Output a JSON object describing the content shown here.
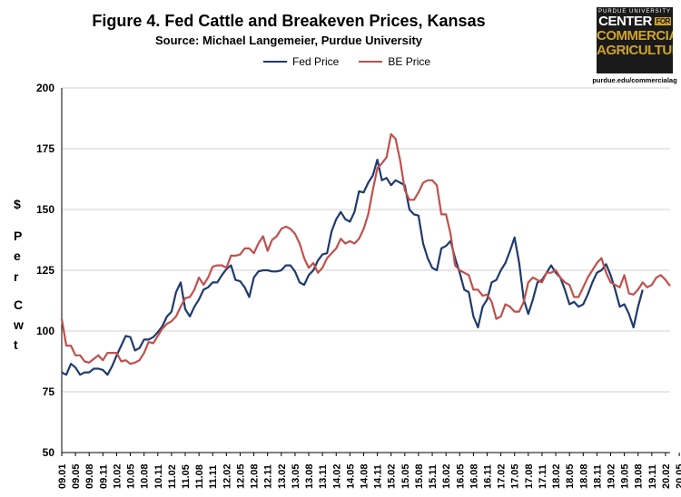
{
  "title": "Figure 4. Fed Cattle and Breakeven Prices, Kansas",
  "subtitle": "Source:  Michael Langemeier, Purdue University",
  "logo": {
    "line1": "PURDUE UNIVERSITY",
    "line2": "CENTER",
    "line2b": "FOR",
    "line3": "COMMERCIAL",
    "line4": "AGRICULTURE",
    "url": "purdue.edu/commercialag"
  },
  "colors": {
    "fed": "#1f3a6e",
    "be": "#c0504d",
    "grid": "#d0d0d0"
  },
  "chart_data": {
    "type": "line",
    "title": "Figure 4. Fed Cattle and Breakeven Prices, Kansas",
    "ylabel": "$ Per Cwt",
    "ylim": [
      50,
      200
    ],
    "yticks": [
      50,
      75,
      100,
      125,
      150,
      175,
      200
    ],
    "grid": "horizontal",
    "legend": "top-center",
    "x_start": "09.01",
    "x_end": "20.06",
    "x_ticks": [
      "09.01",
      "09.05",
      "09.08",
      "09.11",
      "10.02",
      "10.05",
      "10.08",
      "10.11",
      "11.02",
      "11.05",
      "11.08",
      "11.11",
      "12.02",
      "12.05",
      "12.08",
      "12.11",
      "13.02",
      "13.05",
      "13.08",
      "13.11",
      "14.02",
      "14.05",
      "14.08",
      "14.11",
      "15.02",
      "15.05",
      "15.08",
      "15.11",
      "16.02",
      "16.05",
      "16.08",
      "16.11",
      "17.02",
      "17.05",
      "17.08",
      "17.11",
      "18.02",
      "18.05",
      "18.08",
      "18.11",
      "19.02",
      "19.05",
      "19.08",
      "19.11",
      "20.02",
      "20.05"
    ],
    "series": [
      {
        "name": "Fed Price",
        "values": [
          83,
          82,
          86.5,
          85,
          82,
          83,
          83,
          84.5,
          84.5,
          84,
          82,
          85.5,
          90,
          94,
          98,
          97.5,
          92,
          93,
          96.5,
          96.5,
          97.5,
          99.5,
          102,
          106,
          108,
          116,
          120,
          109,
          106,
          110,
          113,
          117,
          118,
          120,
          120,
          123,
          125.5,
          127,
          121,
          120.5,
          118,
          114,
          122,
          124.5,
          125,
          125,
          124.5,
          124.5,
          125,
          127,
          127,
          124.5,
          120,
          119,
          123,
          125,
          129,
          131.5,
          132,
          141,
          146,
          149,
          146,
          145,
          149,
          157.5,
          157,
          161,
          164,
          170.5,
          162,
          163,
          160,
          162,
          161,
          160,
          150,
          148,
          147.5,
          136,
          130,
          126,
          125,
          134,
          135,
          137,
          130,
          124,
          117,
          116,
          106,
          101.5,
          110,
          113,
          120,
          121,
          125,
          128,
          133,
          138.5,
          128,
          113,
          107,
          113,
          120,
          121,
          124,
          127,
          124,
          122,
          117,
          111,
          112,
          110,
          111,
          115,
          120,
          124,
          125,
          127.5,
          123,
          117,
          110,
          111,
          107,
          101.5,
          110,
          117,
          null,
          null,
          null,
          null,
          null,
          null,
          null
        ]
      },
      {
        "name": "BE Price",
        "values": [
          105,
          94,
          94,
          90,
          90,
          87.5,
          87,
          88.5,
          90,
          88,
          91,
          91,
          91,
          87.5,
          88,
          86.5,
          87,
          88,
          91,
          95.5,
          95,
          98,
          101,
          103,
          104,
          106,
          110,
          113.5,
          114,
          117,
          122,
          119,
          122,
          126.5,
          127,
          127,
          126,
          131,
          131,
          131.5,
          134,
          134,
          132,
          136,
          139,
          133,
          137.5,
          139,
          142,
          143,
          142,
          140,
          136,
          130,
          126,
          128,
          124,
          126,
          130,
          132,
          134,
          138,
          136,
          137,
          136,
          138,
          142,
          148,
          158,
          167,
          169,
          171.5,
          181,
          179,
          170,
          158,
          154,
          154,
          157,
          161,
          162,
          162,
          160,
          148,
          148,
          140,
          127,
          125,
          124,
          123,
          117,
          117,
          114.5,
          115,
          112,
          105,
          106,
          111,
          110,
          108,
          108,
          112,
          120,
          122,
          121,
          120,
          124,
          124,
          125,
          122,
          120,
          119,
          114,
          114,
          118,
          122,
          125,
          128,
          130,
          124,
          120,
          119,
          118,
          123,
          115.5,
          115,
          117,
          120,
          118,
          119,
          122,
          123,
          121,
          118.5
        ]
      }
    ]
  }
}
